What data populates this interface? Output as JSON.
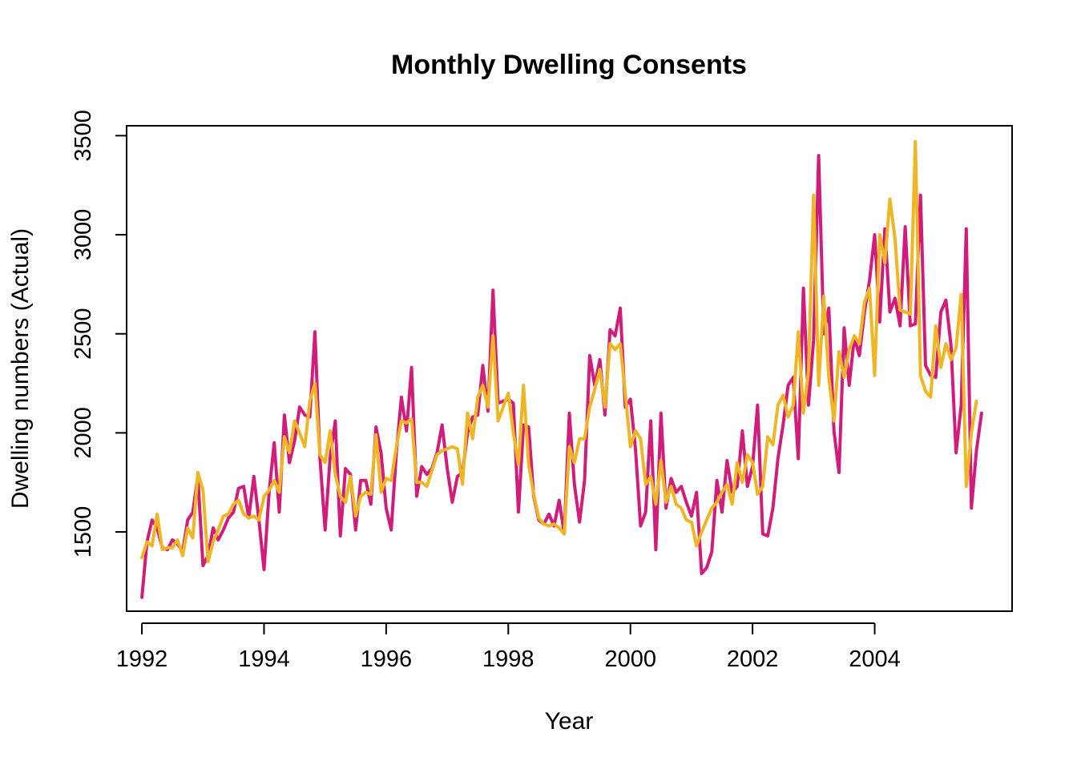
{
  "chart_data": {
    "type": "line",
    "title": "Monthly Dwelling Consents",
    "xlabel": "Year",
    "ylabel": "Dwelling numbers (Actual)",
    "xlim": [
      1991.75,
      2006.25
    ],
    "ylim": [
      1100,
      3550
    ],
    "x_ticks": [
      1992,
      1994,
      1996,
      1998,
      2000,
      2002,
      2004
    ],
    "y_ticks": [
      1500,
      2000,
      2500,
      3000,
      3500
    ],
    "legend": "none",
    "grid": false,
    "x_start": 1992,
    "x_step_per_point": 0.08333,
    "series": [
      {
        "color": "#d01c7a",
        "values": [
          1170,
          1450,
          1560,
          1520,
          1420,
          1410,
          1460,
          1440,
          1400,
          1560,
          1600,
          1780,
          1330,
          1380,
          1520,
          1460,
          1510,
          1570,
          1600,
          1720,
          1730,
          1570,
          1780,
          1560,
          1310,
          1700,
          1950,
          1600,
          2090,
          1850,
          1960,
          2130,
          2090,
          2080,
          2510,
          1870,
          1510,
          1880,
          2060,
          1480,
          1820,
          1790,
          1510,
          1760,
          1760,
          1640,
          2030,
          1900,
          1620,
          1510,
          1900,
          2180,
          2010,
          2330,
          1680,
          1830,
          1790,
          1820,
          1900,
          2040,
          1820,
          1650,
          1780,
          1800,
          2000,
          2080,
          2090,
          2340,
          2110,
          2720,
          2150,
          2160,
          2170,
          2150,
          1600,
          2040,
          2030,
          1680,
          1560,
          1540,
          1590,
          1530,
          1660,
          1490,
          2100,
          1740,
          1550,
          1760,
          2390,
          2240,
          2370,
          2090,
          2520,
          2490,
          2630,
          2130,
          2170,
          1920,
          1530,
          1600,
          2060,
          1410,
          2100,
          1620,
          1770,
          1700,
          1730,
          1650,
          1580,
          1700,
          1290,
          1320,
          1400,
          1760,
          1600,
          1860,
          1700,
          1730,
          2010,
          1730,
          1830,
          2140,
          1490,
          1480,
          1620,
          1870,
          2040,
          2240,
          2280,
          1870,
          2730,
          2140,
          2470,
          3400,
          2500,
          2630,
          2010,
          1800,
          2530,
          2240,
          2480,
          2390,
          2610,
          2770,
          3000,
          2560,
          3030,
          2610,
          2680,
          2540,
          3040,
          2540,
          2550,
          3200,
          2340,
          2290,
          2280,
          2610,
          2670,
          2440,
          1900,
          2140,
          3030,
          1620,
          1910,
          2100
        ],
        "values_note": ""
      },
      {
        "color": "#eeb525",
        "values": [
          1370,
          1450,
          1430,
          1590,
          1410,
          1420,
          1420,
          1460,
          1380,
          1520,
          1470,
          1800,
          1710,
          1350,
          1450,
          1510,
          1580,
          1590,
          1640,
          1660,
          1590,
          1570,
          1580,
          1560,
          1680,
          1710,
          1760,
          1700,
          1980,
          1900,
          2060,
          2000,
          1930,
          2160,
          2250,
          1890,
          1850,
          2010,
          1790,
          1680,
          1650,
          1780,
          1580,
          1680,
          1700,
          1690,
          1990,
          1700,
          1770,
          1760,
          1930,
          2060,
          2050,
          2070,
          1750,
          1750,
          1730,
          1810,
          1890,
          1910,
          1920,
          1930,
          1920,
          1740,
          2100,
          1970,
          2180,
          2240,
          2130,
          2490,
          2060,
          2130,
          2200,
          2000,
          1840,
          2240,
          1840,
          1690,
          1570,
          1540,
          1530,
          1540,
          1520,
          1490,
          1930,
          1850,
          1970,
          1970,
          2130,
          2220,
          2320,
          2130,
          2450,
          2420,
          2450,
          2200,
          1930,
          2010,
          1970,
          1740,
          1780,
          1640,
          1860,
          1650,
          1730,
          1640,
          1620,
          1560,
          1550,
          1430,
          1500,
          1560,
          1620,
          1650,
          1700,
          1740,
          1640,
          1850,
          1750,
          1890,
          1850,
          1690,
          1730,
          1980,
          1940,
          2140,
          2190,
          2080,
          2140,
          2510,
          2100,
          2310,
          3200,
          2240,
          2690,
          2280,
          2060,
          2410,
          2280,
          2420,
          2490,
          2450,
          2660,
          2730,
          2290,
          3000,
          2860,
          3180,
          2980,
          2620,
          2610,
          2600,
          3470,
          2290,
          2210,
          2180,
          2540,
          2330,
          2450,
          2370,
          2430,
          2700,
          1730,
          2000,
          2160
        ]
      }
    ]
  }
}
